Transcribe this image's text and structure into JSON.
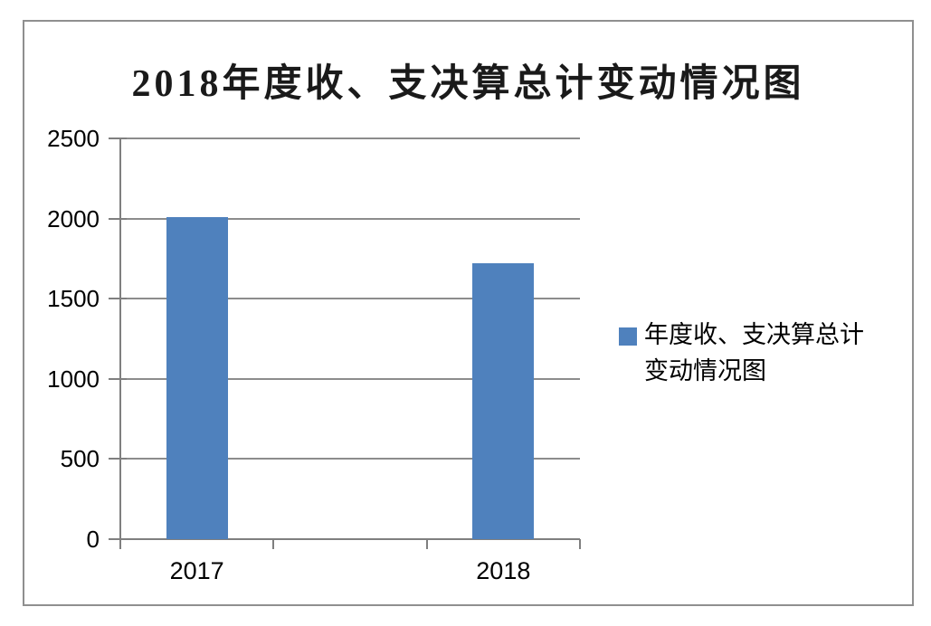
{
  "chart_data": {
    "type": "bar",
    "title": "2018年度收、支决算总计变动情况图",
    "categories": [
      "2017",
      "",
      "2018"
    ],
    "series": [
      {
        "name": "年度收、支决算总计变动情况图",
        "values": [
          2010,
          null,
          1720
        ]
      }
    ],
    "xlabel": "",
    "ylabel": "",
    "ylim": [
      0,
      2500
    ],
    "yticks": [
      0,
      500,
      1000,
      1500,
      2000,
      2500
    ],
    "x_tick_labels": [
      "2017",
      "2018"
    ],
    "grid": "horizontal gridlines on",
    "legend_position": "right middle",
    "bar_width_fraction": 0.4,
    "colors": {
      "bar": "#4F81BD",
      "gridline": "#8C8C8C",
      "axis": "#7F7F7F",
      "text": "#000000",
      "frame_border": "#8F8F8F",
      "background": "#FFFFFF"
    }
  },
  "legend": {
    "label": "年度收、支决算总计变动情况图",
    "marker": "blue-square-icon"
  }
}
